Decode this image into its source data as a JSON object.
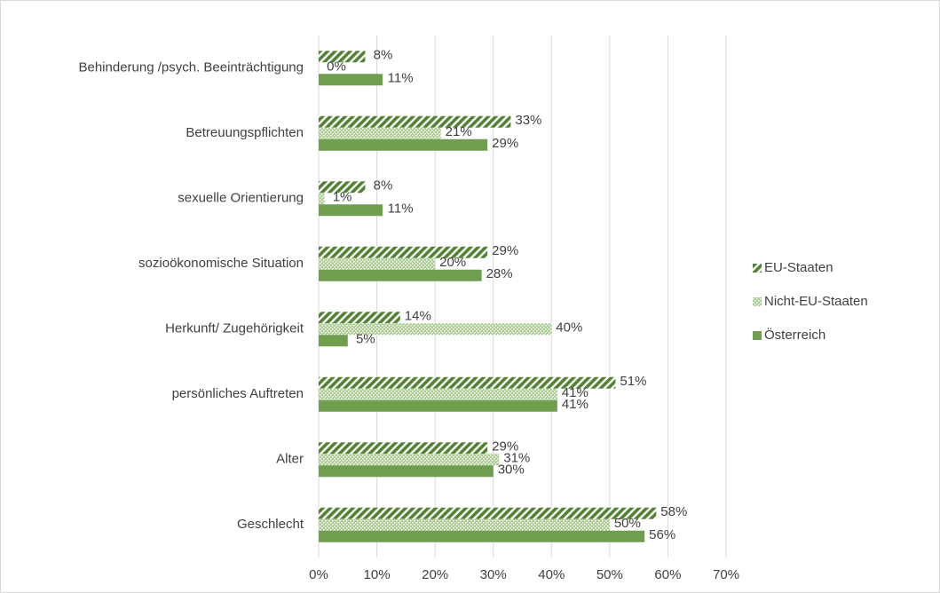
{
  "chart_data": {
    "type": "bar",
    "orientation": "horizontal",
    "categories": [
      "Behinderung /psych. Beeinträchtigung",
      "Betreuungspflichten",
      "sexuelle Orientierung",
      "sozioökonomische Situation",
      "Herkunft/ Zugehörigkeit",
      "persönliches Auftreten",
      "Alter",
      "Geschlecht"
    ],
    "series": [
      {
        "name": "EU-Staaten",
        "color": "#548235",
        "pattern": "diagonal",
        "values": [
          8,
          33,
          8,
          29,
          14,
          51,
          29,
          58
        ],
        "value_labels": [
          "8%",
          "33%",
          "8%",
          "29%",
          "14%",
          "51%",
          "29%",
          "58%"
        ]
      },
      {
        "name": "Nicht-EU-Staaten",
        "color": "#a9d18e",
        "pattern": "dots",
        "values": [
          0,
          21,
          1,
          20,
          40,
          41,
          31,
          50
        ],
        "value_labels": [
          "0%",
          "21%",
          "1%",
          "20%",
          "40%",
          "41%",
          "31%",
          "50%"
        ]
      },
      {
        "name": "Österreich",
        "color": "#6f9e4f",
        "pattern": "solid",
        "values": [
          11,
          29,
          11,
          28,
          5,
          41,
          30,
          56
        ],
        "value_labels": [
          "11%",
          "29%",
          "11%",
          "28%",
          "5%",
          "41%",
          "30%",
          "56%"
        ]
      }
    ],
    "xlim": [
      0,
      70
    ],
    "xticks": [
      {
        "value": 0,
        "label": "0%"
      },
      {
        "value": 10,
        "label": "10%"
      },
      {
        "value": 20,
        "label": "20%"
      },
      {
        "value": 30,
        "label": "30%"
      },
      {
        "value": 40,
        "label": "40%"
      },
      {
        "value": 50,
        "label": "50%"
      },
      {
        "value": 60,
        "label": "60%"
      },
      {
        "value": 70,
        "label": "70%"
      }
    ],
    "grid": true,
    "legend": "right"
  }
}
